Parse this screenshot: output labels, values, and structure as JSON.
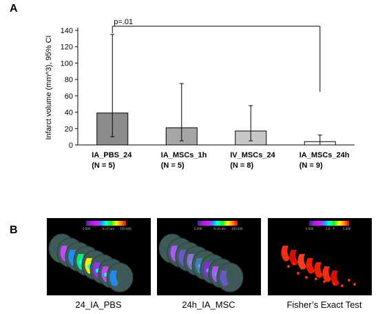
{
  "panel_a": {
    "letter": "A"
  },
  "panel_b": {
    "letter": "B"
  },
  "chart_data": {
    "type": "bar",
    "title": "",
    "ylabel": "Infarct volume (mm^3), 95% CI",
    "xlabel": "",
    "ylim": [
      0,
      140
    ],
    "yticks": [
      "0",
      "20",
      "40",
      "60",
      "80",
      "100",
      "120",
      "140"
    ],
    "categories": [
      {
        "name": "IA_PBS_24",
        "n": "(N = 5)"
      },
      {
        "name": "IA_MSCs_1h",
        "n": "(N = 5)"
      },
      {
        "name": "IV_MSCs_24",
        "n": "(N = 8)"
      },
      {
        "name": "IA_MSCs_24h",
        "n": "(N = 9)"
      }
    ],
    "values": [
      39,
      21,
      17,
      4
    ],
    "ci_lower": [
      10,
      5,
      5,
      0
    ],
    "ci_upper": [
      135,
      75,
      48,
      12
    ],
    "bar_colors": [
      "#8c8c8c",
      "#a6a6a6",
      "#c8c8c8",
      "#ffffff"
    ],
    "annotation": {
      "text": "p=.01",
      "from_category": 0,
      "to_category": 3
    },
    "grid": false,
    "legend": "none"
  },
  "brain_panels": [
    {
      "caption": "24_IA_PBS",
      "scale_min": "0.000",
      "scale_label": "% of rats",
      "scale_max": "100.000",
      "palette": "rainbow"
    },
    {
      "caption": "24h_IA_MSC",
      "scale_min": "0.000",
      "scale_label": "% of rats",
      "scale_max": "100.000",
      "palette": "rainbow"
    },
    {
      "caption": "Fisher’s Exact Test",
      "scale_min": "0.000",
      "scale_label": "1.0 - P",
      "scale_max": "1.000",
      "palette": "rainbow"
    }
  ]
}
